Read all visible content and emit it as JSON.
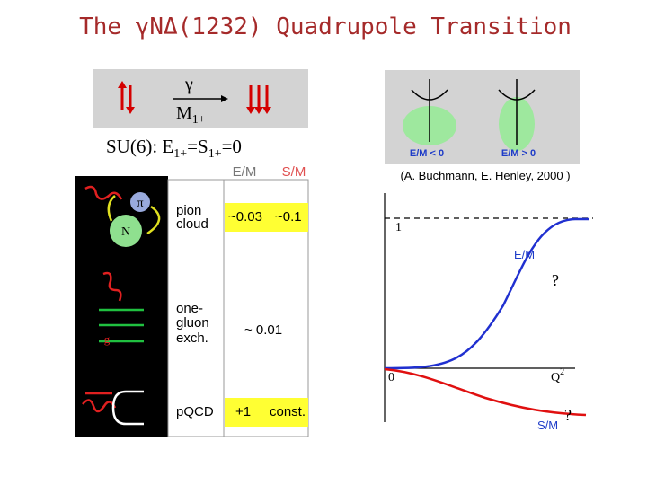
{
  "title": "The γNΔ(1232) Quadrupole Transition",
  "transition_box": {
    "photon": "γ",
    "multipole": "M",
    "multipole_sub": "1+"
  },
  "su6": {
    "parts": [
      "SU(6): E",
      "1+",
      "=S",
      "1+",
      "=0"
    ]
  },
  "image_labels": {
    "pion": "π",
    "nucleon": "N",
    "gluon": "g"
  },
  "table": {
    "headers": [
      "E/M",
      "S/M"
    ],
    "rows": [
      {
        "label": [
          "pion",
          "cloud"
        ],
        "cells": [
          "~0.03",
          "~0.1"
        ]
      },
      {
        "label": [
          "one-",
          "gluon",
          "exch."
        ],
        "cells": [
          "~ 0.01"
        ]
      },
      {
        "label": [
          "pQCD"
        ],
        "cells": [
          "+1",
          "const."
        ]
      }
    ]
  },
  "deformation": {
    "labels": [
      "E/M < 0",
      "E/M > 0"
    ],
    "citation": "(A. Buchmann, E. Henley, 2000 )"
  },
  "plot": {
    "one": "1",
    "zero": "0",
    "em": "E/M",
    "em_unknown": "?",
    "q": "Q",
    "q_sup": "2",
    "sm": "S/M",
    "sm_unknown": "?"
  }
}
